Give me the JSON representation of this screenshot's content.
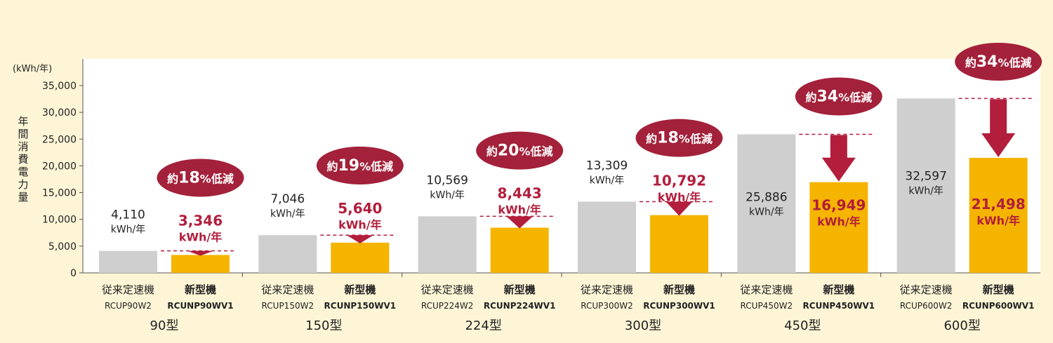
{
  "chart_data": {
    "type": "bar",
    "ylabel": "年間消費電力量",
    "yunit": "(kWh/年)",
    "ylim": [
      0,
      35000
    ],
    "yticks": [
      "0",
      "5,000",
      "10,000",
      "15,000",
      "20,000",
      "25,000",
      "30,000",
      "35,000"
    ],
    "grid": false,
    "colors": {
      "conventional": "#cfcfcf",
      "new": "#f5b400",
      "highlight": "#b21e3c",
      "badge": "#a3213a",
      "plot_bg": "#ffffff"
    },
    "groups": [
      {
        "name": "90型",
        "conventional": {
          "label": "従来定速機",
          "model": "RCUP90W2",
          "value": 4110,
          "value_label": "4,110",
          "unit": "kWh/年"
        },
        "new": {
          "label": "新型機",
          "model": "RCUNP90WV1",
          "value": 3346,
          "value_label": "3,346",
          "unit": "kWh/年"
        },
        "reduction": {
          "prefix": "約",
          "percent": "18",
          "suffix": "%低減"
        }
      },
      {
        "name": "150型",
        "conventional": {
          "label": "従来定速機",
          "model": "RCUP150W2",
          "value": 7046,
          "value_label": "7,046",
          "unit": "kWh/年"
        },
        "new": {
          "label": "新型機",
          "model": "RCUNP150WV1",
          "value": 5640,
          "value_label": "5,640",
          "unit": "kWh/年"
        },
        "reduction": {
          "prefix": "約",
          "percent": "19",
          "suffix": "%低減"
        }
      },
      {
        "name": "224型",
        "conventional": {
          "label": "従来定速機",
          "model": "RCUP224W2",
          "value": 10569,
          "value_label": "10,569",
          "unit": "kWh/年"
        },
        "new": {
          "label": "新型機",
          "model": "RCUNP224WV1",
          "value": 8443,
          "value_label": "8,443",
          "unit": "kWh/年"
        },
        "reduction": {
          "prefix": "約",
          "percent": "20",
          "suffix": "%低減"
        }
      },
      {
        "name": "300型",
        "conventional": {
          "label": "従来定速機",
          "model": "RCUP300W2",
          "value": 13309,
          "value_label": "13,309",
          "unit": "kWh/年"
        },
        "new": {
          "label": "新型機",
          "model": "RCUNP300WV1",
          "value": 10792,
          "value_label": "10,792",
          "unit": "kWh/年"
        },
        "reduction": {
          "prefix": "約",
          "percent": "18",
          "suffix": "%低減"
        }
      },
      {
        "name": "450型",
        "conventional": {
          "label": "従来定速機",
          "model": "RCUP450W2",
          "value": 25886,
          "value_label": "25,886",
          "unit": "kWh/年"
        },
        "new": {
          "label": "新型機",
          "model": "RCUNP450WV1",
          "value": 16949,
          "value_label": "16,949",
          "unit": "kWh/年"
        },
        "reduction": {
          "prefix": "約",
          "percent": "34",
          "suffix": "%低減"
        }
      },
      {
        "name": "600型",
        "conventional": {
          "label": "従来定速機",
          "model": "RCUP600W2",
          "value": 32597,
          "value_label": "32,597",
          "unit": "kWh/年"
        },
        "new": {
          "label": "新型機",
          "model": "RCUNP600WV1",
          "value": 21498,
          "value_label": "21,498",
          "unit": "kWh/年"
        },
        "reduction": {
          "prefix": "約",
          "percent": "34",
          "suffix": "%低減"
        }
      }
    ]
  }
}
